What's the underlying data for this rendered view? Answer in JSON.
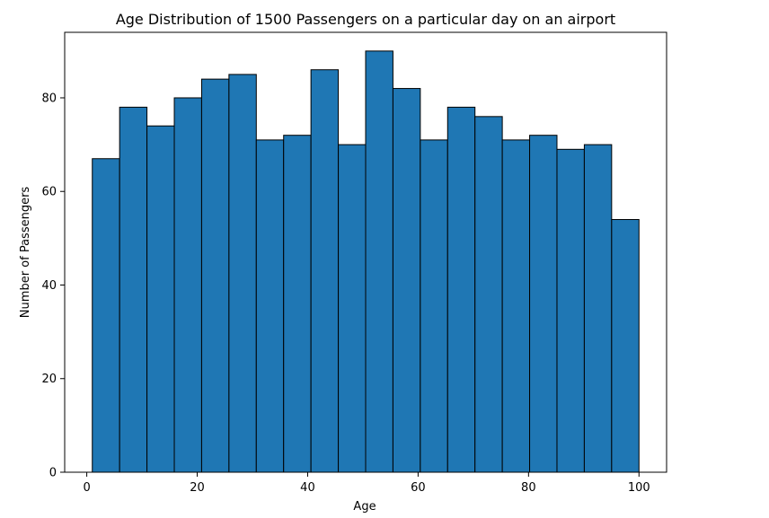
{
  "chart_data": {
    "type": "histogram",
    "title": "Age Distribution of 1500 Passengers on a particular day on an airport",
    "xlabel": "Age",
    "ylabel": "Number of Passengers",
    "xlim": [
      -4,
      105
    ],
    "ylim": [
      0,
      94
    ],
    "xticks": [
      0,
      20,
      40,
      60,
      80,
      100
    ],
    "yticks": [
      0,
      20,
      40,
      60,
      80
    ],
    "bin_edges": [
      1,
      5.95,
      10.9,
      15.85,
      20.8,
      25.75,
      30.7,
      35.65,
      40.6,
      45.55,
      50.5,
      55.45,
      60.4,
      65.35,
      70.3,
      75.25,
      80.2,
      85.15,
      90.1,
      95.05,
      100
    ],
    "counts": [
      67,
      78,
      74,
      80,
      84,
      85,
      71,
      72,
      86,
      70,
      90,
      82,
      71,
      78,
      76,
      71,
      72,
      69,
      70,
      54
    ],
    "bar_color": "#1f77b4",
    "edge_color": "#000000",
    "grid": false,
    "legend": false
  }
}
